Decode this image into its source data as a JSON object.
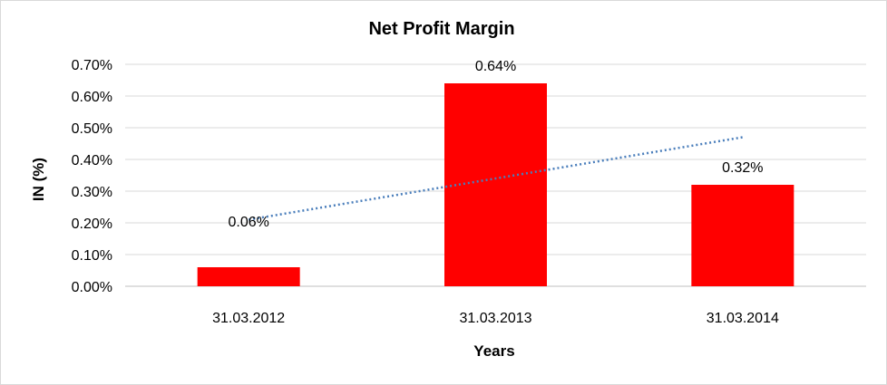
{
  "chart_data": {
    "type": "bar",
    "title": "Net Profit Margin",
    "xlabel": "Years",
    "ylabel": "IN (%)",
    "categories": [
      "31.03.2012",
      "31.03.2013",
      "31.03.2014"
    ],
    "values": [
      0.06,
      0.64,
      0.32
    ],
    "data_labels": [
      "0.06%",
      "0.64%",
      "0.32%"
    ],
    "ylim": [
      0,
      0.7
    ],
    "yticks": [
      0,
      0.1,
      0.2,
      0.3,
      0.4,
      0.5,
      0.6,
      0.7
    ],
    "ytick_labels": [
      "0.00%",
      "0.10%",
      "0.20%",
      "0.30%",
      "0.40%",
      "0.50%",
      "0.60%",
      "0.70%"
    ],
    "bar_color": "#ff0000",
    "trendline": {
      "type": "linear",
      "color": "#4a7ebb",
      "style": "dotted"
    },
    "grid": true,
    "legend": "none"
  }
}
